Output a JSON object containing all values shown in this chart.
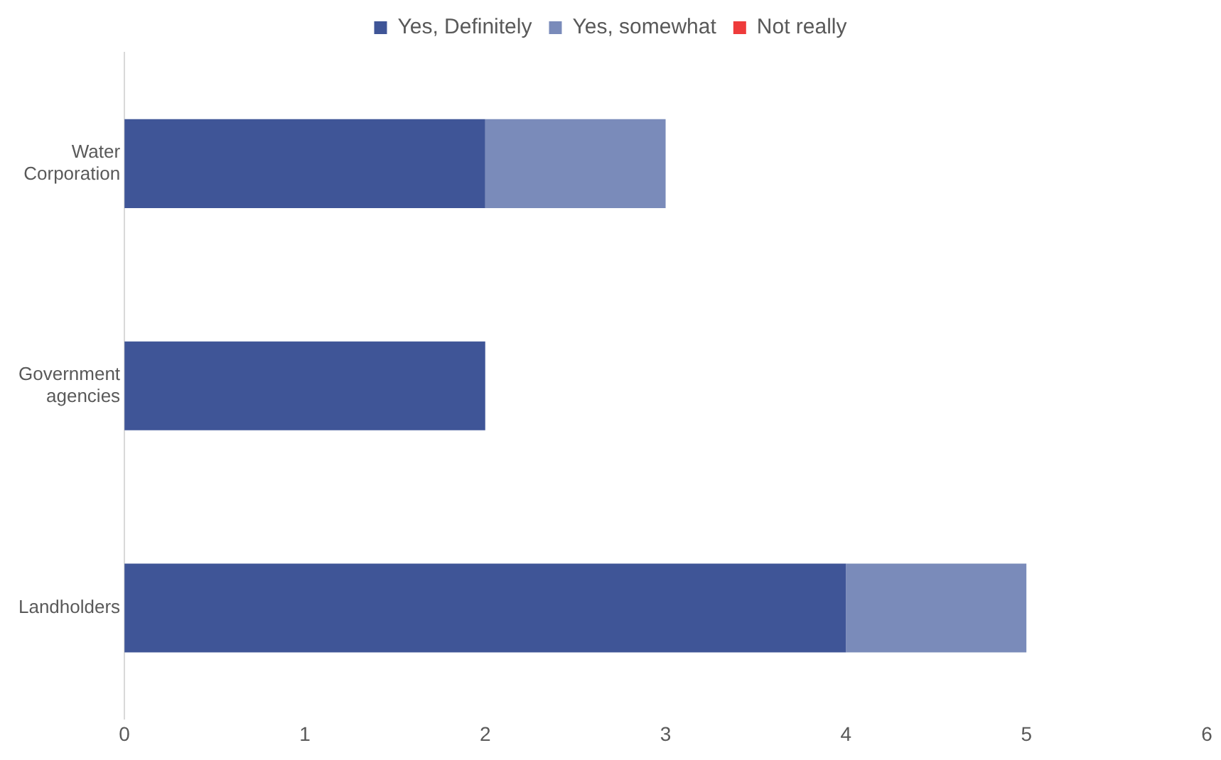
{
  "chart_data": {
    "type": "bar",
    "orientation": "horizontal",
    "stacked": true,
    "categories": [
      "Water Corporation",
      "Government agencies",
      "Landholders"
    ],
    "series": [
      {
        "name": "Yes, Definitely",
        "color": "#3f5597",
        "values": [
          2,
          2,
          4
        ]
      },
      {
        "name": "Yes, somewhat",
        "color": "#7a8bba",
        "values": [
          1,
          0,
          1
        ]
      },
      {
        "name": "Not really",
        "color": "#ee3b3b",
        "values": [
          0,
          0,
          0
        ]
      }
    ],
    "xlim": [
      0,
      6
    ],
    "xticks": [
      0,
      1,
      2,
      3,
      4,
      5,
      6
    ],
    "grid": false,
    "legend": "top"
  }
}
